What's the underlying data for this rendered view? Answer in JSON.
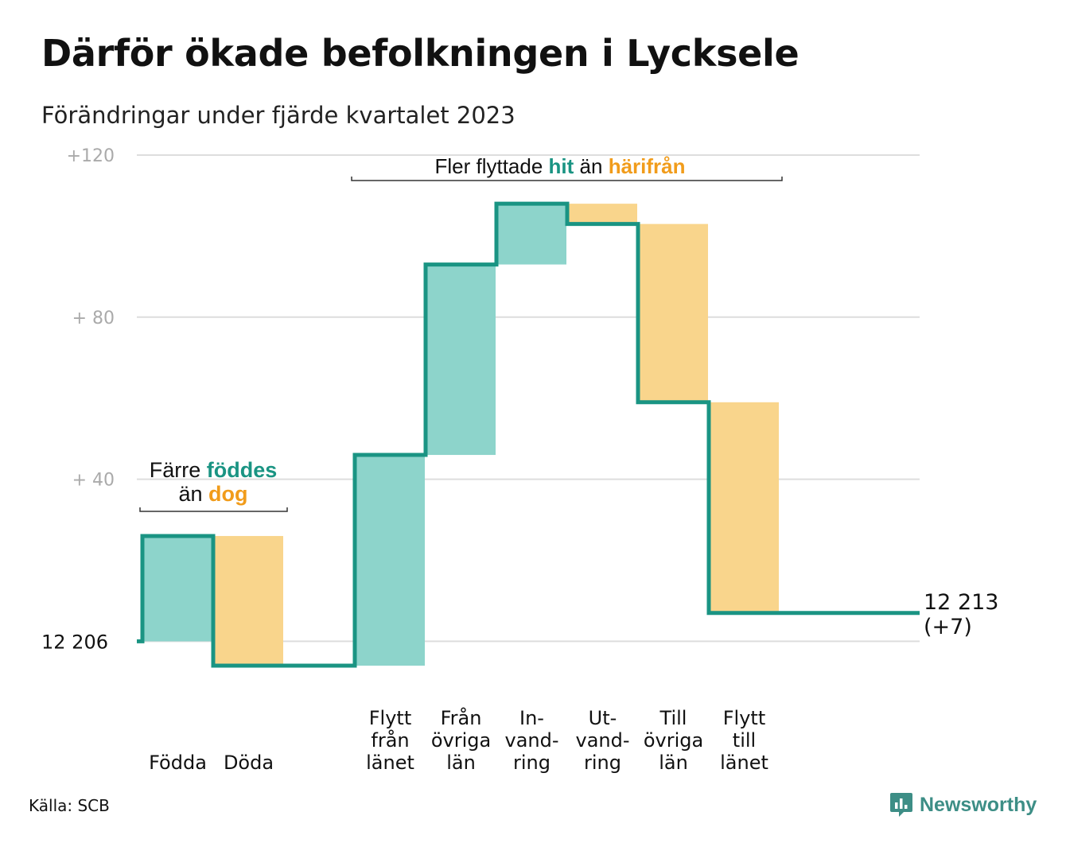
{
  "title": "Därför ökade befolkningen i Lycksele",
  "subtitle": "Förändringar under fjärde kvartalet 2023",
  "source": "Källa: SCB",
  "brand": "Newsworthy",
  "colors": {
    "increase_fill": "#8dd4cb",
    "decrease_fill": "#f9d58c",
    "line": "#1a9483",
    "teal_text": "#1a9483",
    "orange_text": "#f19c1b",
    "grid": "#dddddd",
    "tick_text": "#aaaaaa"
  },
  "chart_data": {
    "type": "waterfall",
    "start_value": 12206,
    "start_label": "12  206",
    "end_label_value": "12 213",
    "end_label_change": "(+7)",
    "ylim": [
      -6,
      120
    ],
    "y_ticks": [
      {
        "value": 120,
        "label": "+120"
      },
      {
        "value": 80,
        "label": "+  80"
      },
      {
        "value": 40,
        "label": "+  40"
      },
      {
        "value": 0,
        "label": ""
      }
    ],
    "steps": [
      {
        "label": "Födda",
        "label_lines": [
          "Födda"
        ],
        "change": 26,
        "direction": "increase"
      },
      {
        "label": "Döda",
        "label_lines": [
          "Döda"
        ],
        "change": -32,
        "direction": "decrease"
      },
      {
        "label": "",
        "label_lines": [],
        "change": 0,
        "direction": "gap"
      },
      {
        "label": "Flytt från länet",
        "label_lines": [
          "Flytt",
          "från",
          "länet"
        ],
        "change": 52,
        "direction": "increase"
      },
      {
        "label": "Från övriga län",
        "label_lines": [
          "Från",
          "övriga",
          "län"
        ],
        "change": 47,
        "direction": "increase"
      },
      {
        "label": "In-vand-ring",
        "label_lines": [
          "In-",
          "vand-",
          "ring"
        ],
        "change": 15,
        "direction": "increase"
      },
      {
        "label": "Ut-vand-ring",
        "label_lines": [
          "Ut-",
          "vand-",
          "ring"
        ],
        "change": -5,
        "direction": "decrease"
      },
      {
        "label": "Till övriga län",
        "label_lines": [
          "Till",
          "övriga",
          "län"
        ],
        "change": -44,
        "direction": "decrease"
      },
      {
        "label": "Flytt till länet",
        "label_lines": [
          "Flytt",
          "till",
          "länet"
        ],
        "change": -52,
        "direction": "decrease"
      }
    ],
    "end_change": 7,
    "annotations": [
      {
        "id": "births",
        "lines": [
          [
            {
              "text": "Färre ",
              "style": "plain"
            },
            {
              "text": "föddes",
              "style": "teal"
            }
          ],
          [
            {
              "text": "än ",
              "style": "plain"
            },
            {
              "text": "dog",
              "style": "orange"
            }
          ]
        ]
      },
      {
        "id": "moves",
        "lines": [
          [
            {
              "text": "Fler flyttade ",
              "style": "plain"
            },
            {
              "text": "hit",
              "style": "teal"
            },
            {
              "text": " än ",
              "style": "plain"
            },
            {
              "text": "härifrån",
              "style": "orange"
            }
          ]
        ]
      }
    ]
  }
}
